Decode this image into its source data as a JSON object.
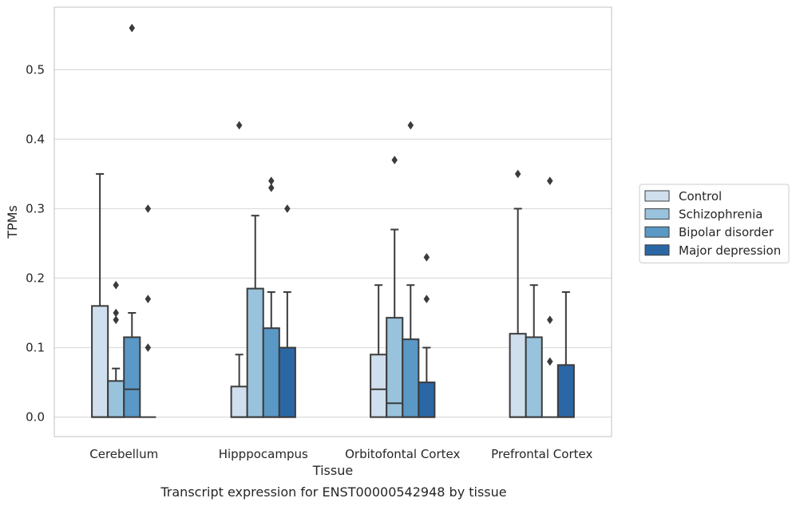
{
  "chart_data": {
    "type": "box",
    "title": "",
    "caption": "Transcript expression for ENST00000542948 by tissue",
    "xlabel": "Tissue",
    "ylabel": "TPMs",
    "ylim": [
      -0.028,
      0.59
    ],
    "yticks": [
      0.0,
      0.1,
      0.2,
      0.3,
      0.4,
      0.5
    ],
    "ytick_labels": [
      "0.0",
      "0.1",
      "0.2",
      "0.3",
      "0.4",
      "0.5"
    ],
    "grid": "horizontal",
    "legend_position": "right",
    "categories": [
      "Cerebellum",
      "Hipppocampus",
      "Orbitofontal Cortex",
      "Prefrontal Cortex"
    ],
    "series": [
      {
        "name": "Control",
        "color": "#d0dfee",
        "boxes": [
          {
            "q1": 0.0,
            "median": 0.0,
            "q3": 0.16,
            "whisker_low": 0.0,
            "whisker_high": 0.35,
            "outliers": []
          },
          {
            "q1": 0.0,
            "median": 0.0,
            "q3": 0.044,
            "whisker_low": 0.0,
            "whisker_high": 0.09,
            "outliers": [
              0.42
            ]
          },
          {
            "q1": 0.0,
            "median": 0.04,
            "q3": 0.09,
            "whisker_low": 0.0,
            "whisker_high": 0.19,
            "outliers": []
          },
          {
            "q1": 0.0,
            "median": 0.0,
            "q3": 0.12,
            "whisker_low": 0.0,
            "whisker_high": 0.3,
            "outliers": [
              0.35
            ]
          }
        ]
      },
      {
        "name": "Schizophrenia",
        "color": "#99c3dc",
        "boxes": [
          {
            "q1": 0.0,
            "median": 0.0,
            "q3": 0.052,
            "whisker_low": 0.0,
            "whisker_high": 0.07,
            "outliers": [
              0.14,
              0.15,
              0.19
            ]
          },
          {
            "q1": 0.0,
            "median": 0.0,
            "q3": 0.185,
            "whisker_low": 0.0,
            "whisker_high": 0.29,
            "outliers": []
          },
          {
            "q1": 0.0,
            "median": 0.02,
            "q3": 0.143,
            "whisker_low": 0.0,
            "whisker_high": 0.27,
            "outliers": [
              0.37
            ]
          },
          {
            "q1": 0.0,
            "median": 0.0,
            "q3": 0.115,
            "whisker_low": 0.0,
            "whisker_high": 0.19,
            "outliers": []
          }
        ]
      },
      {
        "name": "Bipolar disorder",
        "color": "#5a98c6",
        "boxes": [
          {
            "q1": 0.0,
            "median": 0.04,
            "q3": 0.115,
            "whisker_low": 0.0,
            "whisker_high": 0.15,
            "outliers": [
              0.56
            ]
          },
          {
            "q1": 0.0,
            "median": 0.0,
            "q3": 0.128,
            "whisker_low": 0.0,
            "whisker_high": 0.18,
            "outliers": [
              0.33,
              0.34
            ]
          },
          {
            "q1": 0.0,
            "median": 0.0,
            "q3": 0.112,
            "whisker_low": 0.0,
            "whisker_high": 0.19,
            "outliers": [
              0.42
            ]
          },
          {
            "q1": 0.0,
            "median": 0.0,
            "q3": 0.0,
            "whisker_low": 0.0,
            "whisker_high": 0.0,
            "outliers": [
              0.08,
              0.14,
              0.34
            ]
          }
        ]
      },
      {
        "name": "Major depression",
        "color": "#2a67a4",
        "boxes": [
          {
            "q1": 0.0,
            "median": 0.0,
            "q3": 0.0,
            "whisker_low": 0.0,
            "whisker_high": 0.0,
            "outliers": [
              0.1,
              0.17,
              0.3
            ]
          },
          {
            "q1": 0.0,
            "median": 0.0,
            "q3": 0.1,
            "whisker_low": 0.0,
            "whisker_high": 0.18,
            "outliers": [
              0.3
            ]
          },
          {
            "q1": 0.0,
            "median": 0.0,
            "q3": 0.05,
            "whisker_low": 0.0,
            "whisker_high": 0.1,
            "outliers": [
              0.17,
              0.23
            ]
          },
          {
            "q1": 0.0,
            "median": 0.0,
            "q3": 0.075,
            "whisker_low": 0.0,
            "whisker_high": 0.18,
            "outliers": []
          }
        ]
      }
    ]
  }
}
